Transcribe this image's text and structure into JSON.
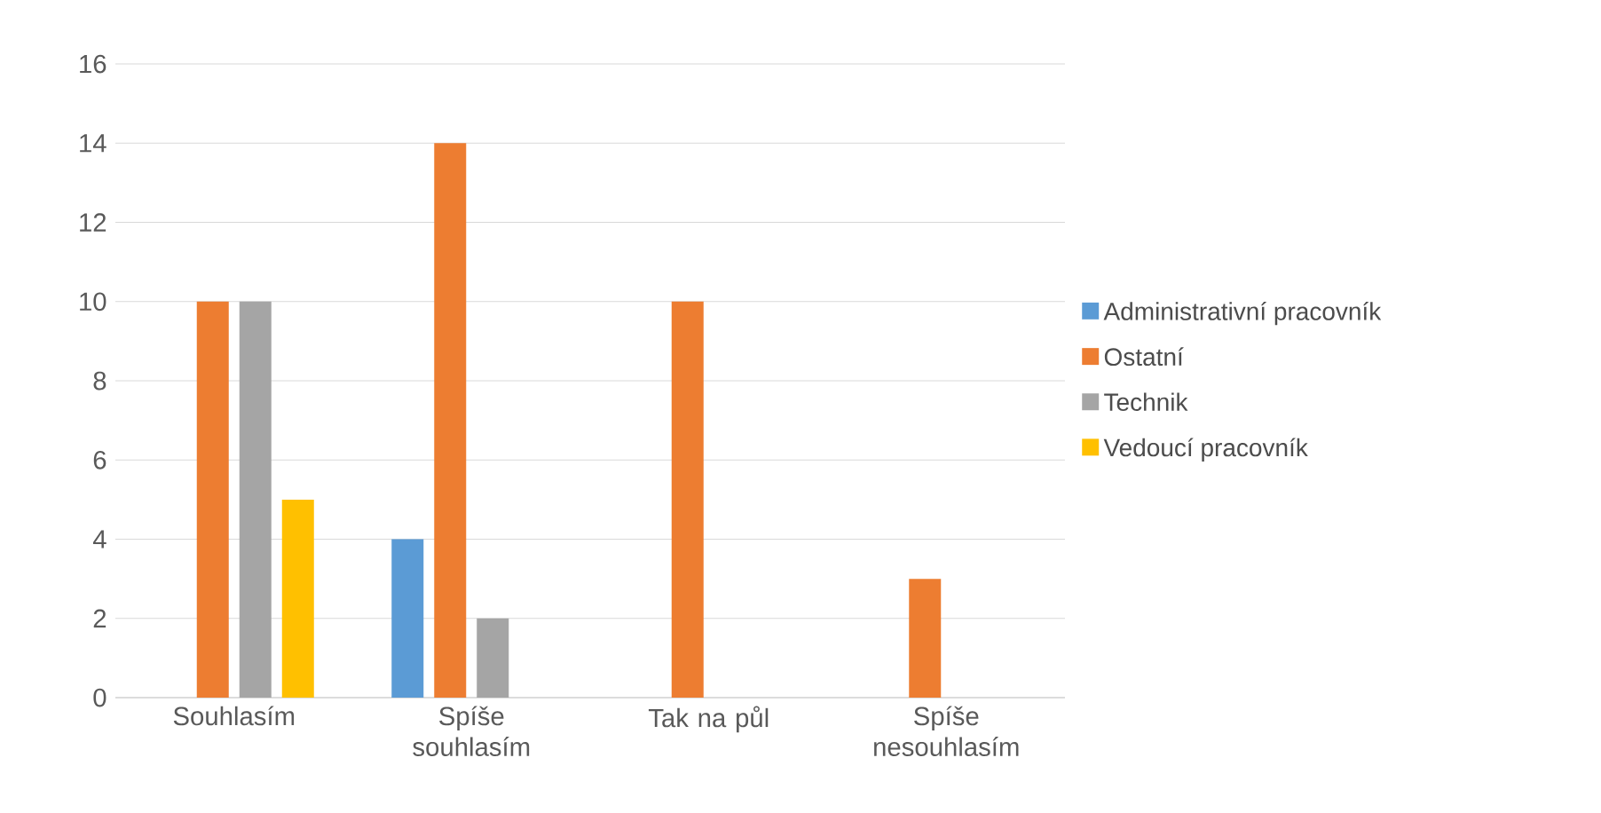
{
  "chart_data": {
    "type": "bar",
    "categories": [
      "Souhlasím",
      "Spíše souhlasím",
      "Tak na půl",
      "Spíše nesouhlasím"
    ],
    "series": [
      {
        "name": "Administrativní pracovník",
        "color": "#5b9bd5",
        "values": [
          0,
          4,
          0,
          0
        ]
      },
      {
        "name": "Ostatní",
        "color": "#ed7d31",
        "values": [
          10,
          14,
          10,
          3
        ]
      },
      {
        "name": "Technik",
        "color": "#a5a5a5",
        "values": [
          10,
          2,
          0,
          0
        ]
      },
      {
        "name": "Vedoucí pracovník",
        "color": "#ffc000",
        "values": [
          5,
          0,
          0,
          0
        ]
      }
    ],
    "ylim": [
      0,
      16
    ],
    "yticks": [
      0,
      2,
      4,
      6,
      8,
      10,
      12,
      14,
      16
    ],
    "grid": "y",
    "legend": "right"
  }
}
